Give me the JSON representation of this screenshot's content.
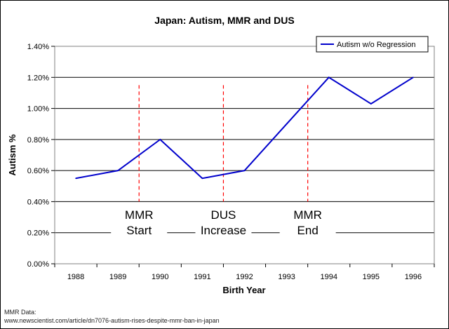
{
  "chart_data": {
    "type": "line",
    "title": "Japan: Autism, MMR and DUS",
    "xlabel": "Birth Year",
    "ylabel": "Autism %",
    "categories": [
      "1988",
      "1989",
      "1990",
      "1991",
      "1992",
      "1993",
      "1994",
      "1995",
      "1996"
    ],
    "series": [
      {
        "name": "Autism w/o Regression",
        "values": [
          0.55,
          0.6,
          0.8,
          0.55,
          0.6,
          0.9,
          1.2,
          1.03,
          1.2
        ],
        "color": "#0000cc"
      }
    ],
    "ylim": [
      0,
      1.4
    ],
    "yticks": [
      0.0,
      0.2,
      0.4,
      0.6,
      0.8,
      1.0,
      1.2,
      1.4
    ],
    "ytick_labels": [
      "0.00%",
      "0.20%",
      "0.40%",
      "0.60%",
      "0.80%",
      "1.00%",
      "1.20%",
      "1.40%"
    ],
    "grid": true,
    "legend_position": "top-right",
    "event_lines": [
      {
        "x": 1989.5,
        "line1": "MMR",
        "line2": "Start",
        "color": "#ff0000"
      },
      {
        "x": 1991.5,
        "line1": "DUS",
        "line2": "Increase",
        "color": "#ff0000"
      },
      {
        "x": 1993.5,
        "line1": "MMR",
        "line2": "End",
        "color": "#ff0000"
      }
    ]
  },
  "source_note": {
    "line1": "MMR Data:",
    "line2": "www.newscientist.com/article/dn7076-autism-rises-despite-mmr-ban-in-japan"
  }
}
